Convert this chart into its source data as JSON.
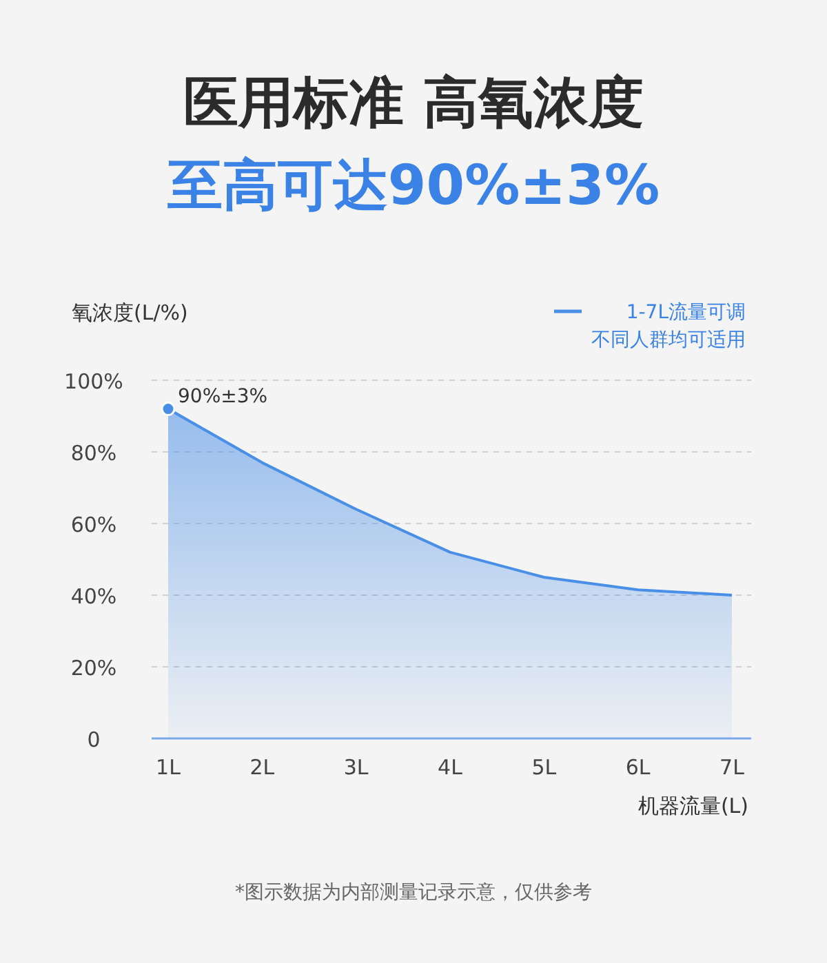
{
  "chart_data": {
    "type": "area",
    "title": "医用标准 高氧浓度",
    "subtitle": "至高可达90%±3%",
    "ylabel": "氧浓度(L/%)",
    "xlabel": "机器流量(L)",
    "categories": [
      "1L",
      "2L",
      "3L",
      "4L",
      "5L",
      "6L",
      "7L"
    ],
    "series": [
      {
        "name": "1-7L流量可调",
        "color": "#4a8fe7",
        "values": [
          92,
          77,
          64,
          52,
          45,
          41.5,
          40
        ]
      }
    ],
    "ylim": [
      0,
      100
    ],
    "yticks": [
      0,
      {
        "value": 20,
        "label": "20%"
      },
      {
        "value": 40,
        "label": "40%"
      },
      {
        "value": 60,
        "label": "60%"
      },
      {
        "value": 80,
        "label": "80%"
      },
      {
        "value": 100,
        "label": "100%"
      }
    ],
    "grid": "y",
    "legend": "top right",
    "marker": "none",
    "line_style": "solid",
    "annotations": [
      {
        "text": "90%±3%",
        "x": "1L",
        "y": 92
      },
      "不同人群均可适用",
      "*图示数据为内部测量记录示意，仅供参考"
    ]
  }
}
